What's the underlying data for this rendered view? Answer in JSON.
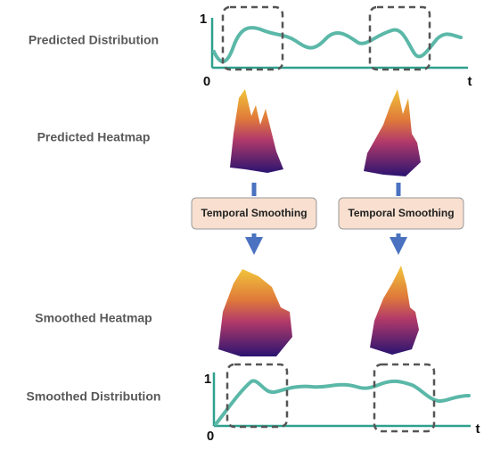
{
  "rows": {
    "predicted_distribution": "Predicted Distribution",
    "predicted_heatmap": "Predicted Heatmap",
    "smoothed_heatmap": "Smoothed Heatmap",
    "smoothed_distribution": "Smoothed Distribution"
  },
  "top_plot": {
    "y_max_label": "1",
    "origin_label": "0",
    "x_label": "t"
  },
  "bottom_plot": {
    "y_max_label": "1",
    "origin_label": "0",
    "x_label": "t"
  },
  "steps": [
    "Temporal Smoothing",
    "Temporal Smoothing"
  ]
}
